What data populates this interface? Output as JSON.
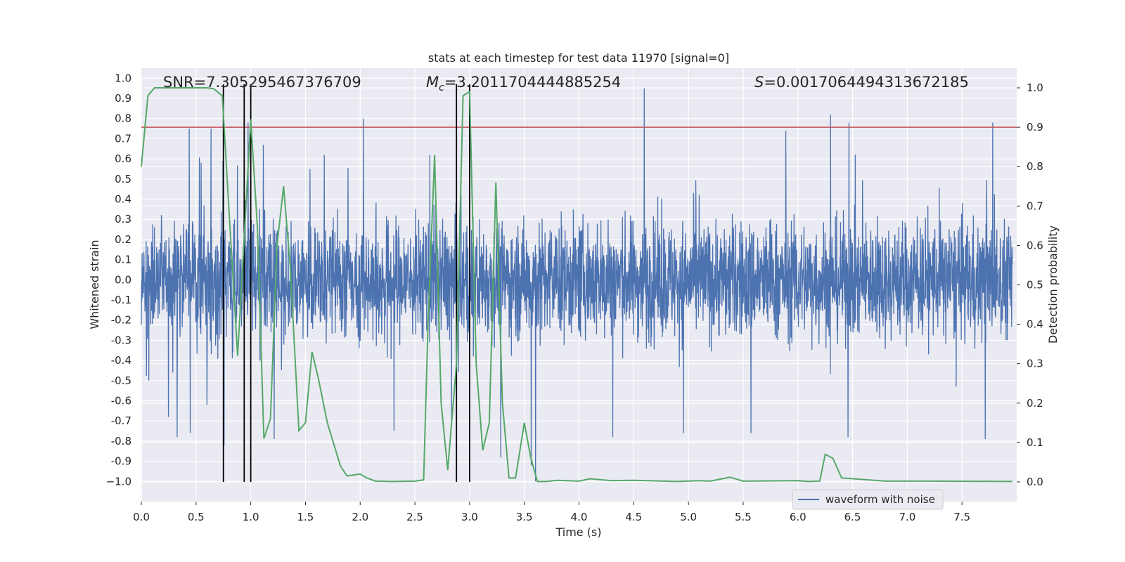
{
  "chart_data": {
    "type": "line",
    "title": "stats at each timestep for test data 11970 [signal=0]",
    "xlabel": "Time (s)",
    "ylabel_left": "Whitened strain",
    "ylabel_right": "Detection probability",
    "xlim": [
      0.0,
      8.0
    ],
    "ylim_left": [
      -1.1,
      1.05
    ],
    "ylim_right": [
      -0.05,
      1.05
    ],
    "x_ticks": [
      0.0,
      0.5,
      1.0,
      1.5,
      2.0,
      2.5,
      3.0,
      3.5,
      4.0,
      4.5,
      5.0,
      5.5,
      6.0,
      6.5,
      7.0,
      7.5
    ],
    "x_tick_labels": [
      "0.0",
      "0.5",
      "1.0",
      "1.5",
      "2.0",
      "2.5",
      "3.0",
      "3.5",
      "4.0",
      "4.5",
      "5.0",
      "5.5",
      "6.0",
      "6.5",
      "7.0",
      "7.5"
    ],
    "y_left_ticks": [
      1.0,
      0.9,
      0.8,
      0.7,
      0.6,
      0.5,
      0.4,
      0.3,
      0.2,
      0.1,
      0.0,
      -0.1,
      -0.2,
      -0.3,
      -0.4,
      -0.5,
      -0.6,
      -0.7,
      -0.8,
      -0.9,
      -1.0
    ],
    "y_left_tick_labels": [
      "1.0",
      "0.9",
      "0.8",
      "0.7",
      "0.6",
      "0.5",
      "0.4",
      "0.3",
      "0.2",
      "0.1",
      "0.0",
      "-0.1",
      "-0.2",
      "-0.3",
      "-0.4",
      "-0.5",
      "-0.6",
      "-0.7",
      "-0.8",
      "-0.9",
      "−1.0"
    ],
    "y_right_ticks": [
      1.0,
      0.9,
      0.8,
      0.7,
      0.6,
      0.5,
      0.4,
      0.3,
      0.2,
      0.1,
      0.0
    ],
    "y_right_tick_labels": [
      "1.0",
      "0.9",
      "0.8",
      "0.7",
      "0.6",
      "0.5",
      "0.4",
      "0.3",
      "0.2",
      "0.1",
      "0.0"
    ],
    "grid": true,
    "annotations": {
      "snr": "SNR=7.305295467376709",
      "mc_symbol": "M",
      "mc_subscript": "c",
      "mc_value": "=3.2011704444885254",
      "s_symbol": "S",
      "s_value": "=0.0017064494313672185"
    },
    "threshold": 0.9,
    "vertical_lines": [
      0.75,
      0.94,
      1.0,
      2.88,
      3.0
    ],
    "series": [
      {
        "name": "waveform with noise",
        "color": "#4c72b0",
        "style": "dense noise waveform, mostly within ±0.35 with spikes",
        "spikes": [
          {
            "t": 0.07,
            "v": -0.5
          },
          {
            "t": 0.25,
            "v": -0.68
          },
          {
            "t": 0.33,
            "v": -0.78
          },
          {
            "t": 0.45,
            "v": -0.76
          },
          {
            "t": 0.44,
            "v": 0.75
          },
          {
            "t": 0.55,
            "v": 0.58
          },
          {
            "t": 0.64,
            "v": 0.75
          },
          {
            "t": 0.75,
            "v": 0.59
          },
          {
            "t": 0.76,
            "v": -0.82
          },
          {
            "t": 0.98,
            "v": 0.78
          },
          {
            "t": 1.12,
            "v": 0.67
          },
          {
            "t": 1.22,
            "v": -0.79
          },
          {
            "t": 1.55,
            "v": 0.55
          },
          {
            "t": 1.68,
            "v": 0.62
          },
          {
            "t": 2.04,
            "v": 0.8
          },
          {
            "t": 2.32,
            "v": -0.75
          },
          {
            "t": 2.65,
            "v": 0.62
          },
          {
            "t": 2.85,
            "v": -0.73
          },
          {
            "t": 3.3,
            "v": -0.88
          },
          {
            "t": 3.58,
            "v": -0.92
          },
          {
            "t": 3.62,
            "v": -1.0
          },
          {
            "t": 4.33,
            "v": -0.78
          },
          {
            "t": 4.62,
            "v": 0.95
          },
          {
            "t": 4.98,
            "v": -0.76
          },
          {
            "t": 5.6,
            "v": -0.76
          },
          {
            "t": 5.92,
            "v": 0.74
          },
          {
            "t": 6.33,
            "v": 0.82
          },
          {
            "t": 6.5,
            "v": 0.78
          },
          {
            "t": 6.49,
            "v": -0.78
          },
          {
            "t": 7.75,
            "v": -0.79
          },
          {
            "t": 7.82,
            "v": 0.78
          }
        ]
      },
      {
        "name": "detection probability",
        "color": "#55a868",
        "axis": "right",
        "t": [
          0.0,
          0.06,
          0.12,
          0.2,
          0.3,
          0.4,
          0.5,
          0.6,
          0.66,
          0.74,
          0.82,
          0.88,
          0.94,
          1.0,
          1.06,
          1.12,
          1.18,
          1.24,
          1.3,
          1.36,
          1.44,
          1.5,
          1.56,
          1.62,
          1.7,
          1.82,
          1.88,
          2.0,
          2.06,
          2.14,
          2.3,
          2.5,
          2.58,
          2.62,
          2.68,
          2.74,
          2.8,
          2.88,
          2.94,
          3.0,
          3.06,
          3.12,
          3.18,
          3.24,
          3.3,
          3.36,
          3.42,
          3.5,
          3.56,
          3.62,
          3.7,
          3.8,
          4.0,
          4.1,
          4.3,
          4.5,
          4.9,
          5.1,
          5.2,
          5.38,
          5.5,
          6.0,
          6.1,
          6.2,
          6.25,
          6.32,
          6.4,
          6.8,
          7.2,
          7.96
        ],
        "values": [
          0.8,
          0.98,
          1.0,
          1.0,
          1.0,
          1.0,
          1.0,
          1.0,
          0.998,
          0.98,
          0.6,
          0.32,
          0.62,
          0.92,
          0.65,
          0.11,
          0.16,
          0.6,
          0.75,
          0.55,
          0.13,
          0.15,
          0.33,
          0.26,
          0.15,
          0.04,
          0.015,
          0.02,
          0.01,
          0.002,
          0.001,
          0.002,
          0.005,
          0.4,
          0.83,
          0.2,
          0.03,
          0.3,
          0.98,
          0.99,
          0.3,
          0.08,
          0.15,
          0.76,
          0.2,
          0.01,
          0.01,
          0.15,
          0.06,
          0.001,
          0.001,
          0.004,
          0.002,
          0.008,
          0.003,
          0.004,
          0.001,
          0.003,
          0.002,
          0.012,
          0.002,
          0.003,
          0.001,
          0.002,
          0.07,
          0.06,
          0.01,
          0.002,
          0.002,
          0.001
        ]
      }
    ],
    "legend": {
      "entries": [
        "waveform with noise"
      ],
      "placement": "lower-right"
    }
  },
  "colors": {
    "background": "#ffffff",
    "plot_bg": "#eaeaf2",
    "grid": "#ffffff",
    "waveform": "#4c72b0",
    "probability": "#55a868",
    "threshold": "#c44e52",
    "vline": "#000000"
  }
}
